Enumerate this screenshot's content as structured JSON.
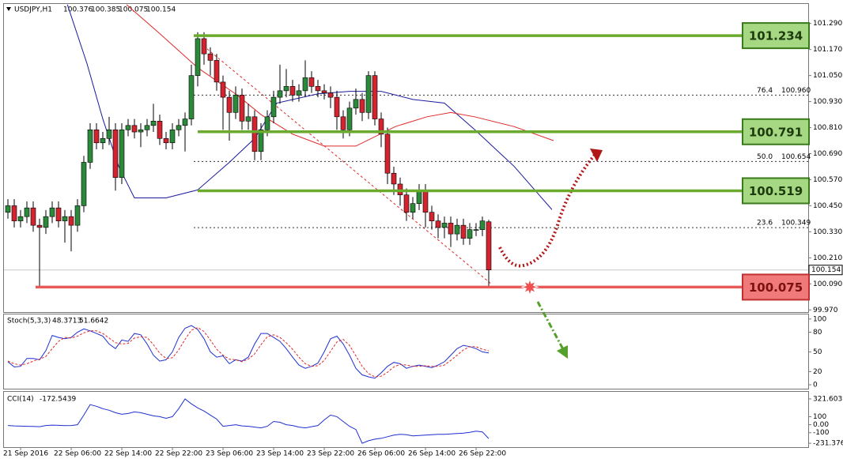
{
  "chart_data": [
    {
      "type": "candlestick",
      "symbol": "USDJPY,H1",
      "categories": [
        null,
        null,
        "21 Sep 2016",
        null,
        null,
        null,
        null,
        null,
        null,
        null,
        "22 Sep 06:00",
        null,
        null,
        null,
        null,
        null,
        null,
        null,
        "22 Sep 14:00",
        null,
        null,
        null,
        null,
        null,
        null,
        null,
        "22 Sep 22:00",
        null,
        null,
        null,
        null,
        null,
        null,
        null,
        "23 Sep 06:00",
        null,
        null,
        null,
        null,
        null,
        null,
        null,
        "23 Sep 14:00",
        null,
        null,
        null,
        null,
        null,
        null,
        null,
        "23 Sep 22:00",
        null,
        null,
        null,
        null,
        null,
        null,
        null,
        "26 Sep 06:00",
        null,
        null,
        null,
        null,
        null,
        null,
        null,
        "26 Sep 14:00",
        null,
        null,
        null,
        null,
        null,
        null,
        null,
        "26 Sep 22:00",
        null,
        null
      ],
      "open": [
        100.42,
        100.45,
        100.38,
        100.4,
        100.44,
        100.36,
        100.35,
        100.4,
        100.44,
        100.38,
        100.4,
        100.36,
        100.45,
        100.65,
        100.8,
        100.74,
        100.76,
        100.8,
        100.58,
        100.8,
        100.82,
        100.79,
        100.8,
        100.82,
        100.84,
        100.76,
        100.74,
        100.8,
        100.82,
        100.85,
        101.05,
        101.22,
        101.15,
        101.12,
        101.02,
        100.95,
        100.88,
        100.96,
        100.84,
        100.86,
        100.7,
        100.8,
        100.86,
        100.95,
        100.98,
        101.0,
        100.96,
        100.98,
        101.04,
        101.0,
        100.98,
        100.97,
        100.95,
        100.86,
        100.8,
        100.9,
        100.94,
        100.88,
        101.05,
        100.85,
        100.78,
        100.6,
        100.55,
        100.5,
        100.42,
        100.46,
        100.52,
        100.42,
        100.38,
        100.35,
        100.37,
        100.32,
        100.36,
        100.3,
        100.34,
        100.34,
        100.376
      ],
      "high": [
        100.48,
        100.48,
        100.43,
        100.47,
        100.47,
        100.39,
        100.43,
        100.47,
        100.47,
        100.43,
        100.43,
        100.48,
        100.68,
        100.83,
        100.83,
        100.79,
        100.86,
        100.83,
        100.83,
        100.85,
        100.85,
        100.83,
        100.85,
        100.92,
        100.87,
        100.79,
        100.83,
        100.85,
        100.88,
        101.1,
        101.25,
        101.25,
        101.18,
        101.15,
        101.05,
        100.98,
        101.0,
        100.99,
        100.92,
        100.89,
        100.83,
        100.89,
        100.98,
        101.1,
        101.08,
        101.03,
        101.01,
        101.12,
        101.07,
        101.03,
        101.01,
        101.0,
        100.98,
        100.89,
        100.93,
        100.99,
        100.97,
        101.07,
        101.07,
        100.88,
        100.81,
        100.63,
        100.58,
        100.53,
        100.49,
        100.55,
        100.55,
        100.45,
        100.41,
        100.4,
        100.4,
        100.39,
        100.39,
        100.37,
        100.37,
        100.4,
        100.385
      ],
      "low": [
        100.39,
        100.35,
        100.35,
        100.37,
        100.33,
        100.08,
        100.32,
        100.37,
        100.35,
        100.28,
        100.24,
        100.33,
        100.42,
        100.62,
        100.71,
        100.71,
        100.73,
        100.52,
        100.55,
        100.77,
        100.76,
        100.72,
        100.77,
        100.79,
        100.73,
        100.71,
        100.71,
        100.77,
        100.7,
        100.82,
        101.0,
        101.1,
        101.05,
        100.98,
        100.8,
        100.75,
        100.85,
        100.8,
        100.8,
        100.66,
        100.66,
        100.77,
        100.83,
        100.92,
        100.95,
        100.93,
        100.93,
        100.95,
        100.97,
        100.95,
        100.94,
        100.9,
        100.8,
        100.76,
        100.77,
        100.87,
        100.84,
        100.85,
        100.82,
        100.72,
        100.55,
        100.5,
        100.45,
        100.38,
        100.39,
        100.43,
        100.35,
        100.34,
        100.3,
        100.3,
        100.26,
        100.29,
        100.27,
        100.27,
        100.31,
        100.31,
        100.075
      ],
      "close": [
        100.45,
        100.38,
        100.4,
        100.44,
        100.36,
        100.35,
        100.4,
        100.44,
        100.38,
        100.4,
        100.36,
        100.45,
        100.65,
        100.8,
        100.74,
        100.76,
        100.8,
        100.58,
        100.8,
        100.82,
        100.79,
        100.8,
        100.82,
        100.84,
        100.76,
        100.74,
        100.8,
        100.82,
        100.85,
        101.05,
        101.22,
        101.15,
        101.12,
        101.02,
        100.95,
        100.88,
        100.96,
        100.84,
        100.86,
        100.7,
        100.8,
        100.86,
        100.95,
        100.98,
        101.0,
        100.96,
        100.98,
        101.04,
        101.0,
        100.98,
        100.97,
        100.95,
        100.86,
        100.8,
        100.9,
        100.94,
        100.88,
        101.05,
        100.85,
        100.78,
        100.6,
        100.55,
        100.5,
        100.42,
        100.46,
        100.52,
        100.42,
        100.38,
        100.35,
        100.37,
        100.32,
        100.36,
        100.3,
        100.34,
        100.34,
        100.38,
        100.154
      ],
      "up_color": "#2a8a3a",
      "down_color": "#d2232f",
      "ylim": [
        99.96,
        101.38
      ],
      "yticks": [
        {
          "value": 101.29,
          "label": "101.290"
        },
        {
          "value": 101.17,
          "label": "101.170"
        },
        {
          "value": 101.05,
          "label": "101.050"
        },
        {
          "value": 100.93,
          "label": "100.930"
        },
        {
          "value": 100.81,
          "label": "100.810"
        },
        {
          "value": 100.69,
          "label": "100.690"
        },
        {
          "value": 100.57,
          "label": "100.570"
        },
        {
          "value": 100.45,
          "label": "100.450"
        },
        {
          "value": 100.33,
          "label": "100.330"
        },
        {
          "value": 100.21,
          "label": "100.210"
        },
        {
          "value": 100.09,
          "label": "100.090"
        },
        {
          "value": 99.97,
          "label": "99.970"
        }
      ],
      "last_price": 100.154,
      "moving_averages": [
        {
          "color": "#1a1a9c",
          "x": [
            9.4,
            12.5,
            15,
            17.5,
            20,
            25,
            30,
            35,
            39,
            42.5,
            49,
            54,
            59,
            64,
            69,
            74,
            80,
            86
          ],
          "values": [
            101.377,
            101.105,
            100.85,
            100.632,
            100.486,
            100.486,
            100.523,
            100.65,
            100.76,
            100.923,
            100.966,
            100.977,
            100.977,
            100.94,
            100.923,
            100.795,
            100.632,
            100.432
          ]
        },
        {
          "color": "#e02828",
          "x": [
            18.75,
            23.75,
            30,
            36.25,
            40,
            45,
            50,
            55,
            61.25,
            66.25,
            70,
            73.75,
            80,
            86.25
          ],
          "values": [
            101.377,
            101.25,
            101.086,
            100.96,
            100.87,
            100.78,
            100.725,
            100.725,
            100.815,
            100.86,
            100.88,
            100.86,
            100.815,
            100.75
          ]
        }
      ],
      "levels": [
        {
          "value": 101.234,
          "color": "#6aaa2c",
          "box": "#a6d884"
        },
        {
          "value": 100.791,
          "color": "#6aaa2c",
          "box": "#a6d884"
        },
        {
          "value": 100.519,
          "color": "#6aaa2c",
          "box": "#a6d884"
        },
        {
          "value": 100.075,
          "color": "#e85a5a",
          "box": "#f07a7a"
        }
      ],
      "fibonacci": [
        {
          "ratio": "76.4",
          "price": {
            "value": 100.96,
            "label": "100.960"
          }
        },
        {
          "ratio": "50.0",
          "price": 100.654
        },
        {
          "ratio": "23.6",
          "price": 100.349
        }
      ]
    },
    {
      "type": "line",
      "title": "Stoch(5,3,3)",
      "series": [
        {
          "color": "#1f2fd0",
          "dash": false,
          "values": [
            35,
            27,
            28,
            40,
            40,
            38,
            52,
            75,
            72,
            70,
            72,
            80,
            85,
            82,
            78,
            74,
            62,
            55,
            68,
            66,
            78,
            76,
            62,
            45,
            36,
            38,
            50,
            72,
            86,
            90,
            84,
            70,
            50,
            42,
            44,
            32,
            38,
            36,
            42,
            62,
            78,
            78,
            72,
            66,
            55,
            42,
            30,
            25,
            28,
            33,
            50,
            70,
            74,
            62,
            45,
            25,
            15,
            12,
            10,
            18,
            28,
            34,
            32,
            25,
            28,
            30,
            28,
            26,
            30,
            35,
            45,
            55,
            60,
            58,
            55,
            50,
            48.3713
          ]
        },
        {
          "color": "#e02828",
          "dash": true,
          "values": [
            36,
            32,
            30,
            32,
            36,
            39,
            43,
            55,
            66,
            72,
            71,
            74,
            79,
            82,
            82,
            78,
            71,
            64,
            62,
            63,
            71,
            73,
            72,
            61,
            48,
            40,
            41,
            53,
            69,
            83,
            87,
            81,
            68,
            54,
            45,
            39,
            38,
            35,
            39,
            47,
            61,
            73,
            76,
            72,
            64,
            54,
            42,
            32,
            28,
            29,
            37,
            51,
            65,
            69,
            60,
            44,
            28,
            17,
            12,
            13,
            19,
            27,
            31,
            30,
            28,
            28,
            29,
            28,
            28,
            30,
            37,
            45,
            53,
            58,
            58,
            54,
            51.6642
          ]
        }
      ],
      "ylim": [
        -6,
        107
      ],
      "yticks": [
        100,
        80,
        50,
        20,
        0
      ]
    },
    {
      "type": "line",
      "title": "CCI(14)",
      "series": [
        {
          "color": "#1f2fd0",
          "dash": false,
          "values": [
            -10,
            -15,
            -18,
            -20,
            -22,
            -25,
            -10,
            -5,
            -8,
            -12,
            -10,
            0,
            120,
            250,
            230,
            200,
            180,
            150,
            130,
            140,
            160,
            150,
            130,
            110,
            100,
            80,
            100,
            200,
            321.6037,
            260,
            210,
            170,
            120,
            70,
            -20,
            -10,
            0,
            -15,
            -20,
            -30,
            -40,
            -20,
            40,
            30,
            0,
            -10,
            -30,
            -40,
            -25,
            -10,
            60,
            120,
            100,
            40,
            -20,
            -60,
            -231.3761,
            -200,
            -180,
            -170,
            -150,
            -130,
            -120,
            -125,
            -140,
            -135,
            -130,
            -125,
            -120,
            -120,
            -115,
            -110,
            -105,
            -95,
            -80,
            -90,
            -172.5439
          ]
        }
      ],
      "ylim": [
        -280,
        400
      ],
      "yticks": [
        321.6037,
        100,
        {
          "value": 0,
          "label": "0.00"
        },
        -100,
        -231.3761
      ]
    }
  ]
}
